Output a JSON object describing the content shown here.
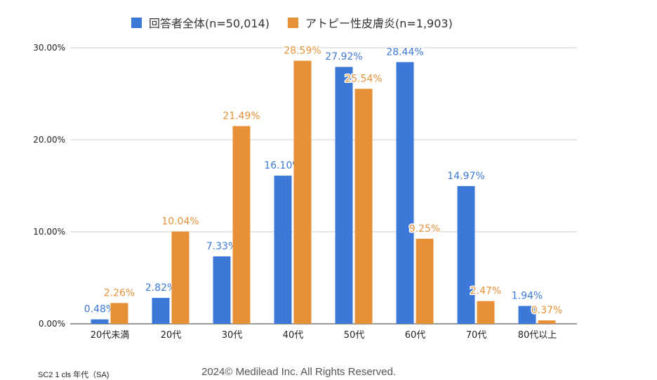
{
  "chart_data": {
    "type": "bar",
    "categories": [
      "20代未満",
      "20代",
      "30代",
      "40代",
      "50代",
      "60代",
      "70代",
      "80代以上"
    ],
    "series": [
      {
        "name": "回答者全体(n=50,014)",
        "color": "#3c78d8",
        "values": [
          0.48,
          2.82,
          7.33,
          16.1,
          27.92,
          28.44,
          14.97,
          1.94
        ],
        "labels": [
          "0.48%",
          "2.82%",
          "7.33%",
          "16.10%",
          "27.92%",
          "28.44%",
          "14.97%",
          "1.94%"
        ]
      },
      {
        "name": "アトピー性皮膚炎(n=1,903)",
        "color": "#e69138",
        "values": [
          2.26,
          10.04,
          21.49,
          28.59,
          25.54,
          9.25,
          2.47,
          0.37
        ],
        "labels": [
          "2.26%",
          "10.04%",
          "21.49%",
          "28.59%",
          "25.54%",
          "9.25%",
          "2.47%",
          "0.37%"
        ]
      }
    ],
    "yticks": [
      0,
      10,
      20,
      30
    ],
    "ytick_labels": [
      "0.00%",
      "10.00%",
      "20.00%",
      "30.00%"
    ],
    "ylim": [
      0,
      30
    ],
    "grid": true,
    "legend": "top"
  },
  "footer": {
    "left": "SC2 1 cls  年代（SA)",
    "right": "2024© Medilead Inc. All Rights Reserved."
  }
}
